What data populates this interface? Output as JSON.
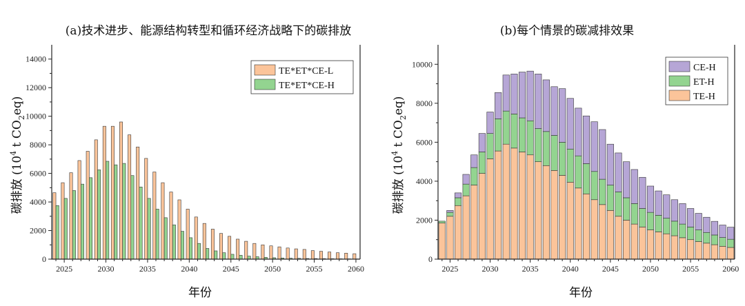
{
  "chart_data": [
    {
      "type": "bar",
      "title": "(a)技术进步、能源结构转型和循环经济战略下的碳排放",
      "xlabel": "年份",
      "ylabel": {
        "main": "碳排放 (10",
        "sup": "4",
        "mid": " t CO",
        "sub": "2",
        "end": "eq)"
      },
      "xlim": [
        2023.5,
        2060.5
      ],
      "ylim": [
        0,
        15000
      ],
      "x_ticks": [
        2025,
        2030,
        2035,
        2040,
        2045,
        2050,
        2055,
        2060
      ],
      "y_ticks": [
        0,
        2000,
        4000,
        6000,
        8000,
        10000,
        12000,
        14000
      ],
      "legend_position": "top-right",
      "categories": [
        2024,
        2025,
        2026,
        2027,
        2028,
        2029,
        2030,
        2031,
        2032,
        2033,
        2034,
        2035,
        2036,
        2037,
        2038,
        2039,
        2040,
        2041,
        2042,
        2043,
        2044,
        2045,
        2046,
        2047,
        2048,
        2049,
        2050,
        2051,
        2052,
        2053,
        2054,
        2055,
        2056,
        2057,
        2058,
        2059,
        2060
      ],
      "series": [
        {
          "name": "TE*ET*CE-L",
          "color": "#FBC49A",
          "values": [
            4650,
            5350,
            6050,
            6900,
            7550,
            8350,
            9300,
            9300,
            9600,
            8700,
            7850,
            7050,
            6100,
            5350,
            4700,
            4150,
            3500,
            2950,
            2500,
            2100,
            1800,
            1600,
            1400,
            1250,
            1100,
            1000,
            930,
            860,
            780,
            720,
            680,
            600,
            550,
            500,
            450,
            420,
            380
          ]
        },
        {
          "name": "TE*ET*CE-H",
          "color": "#93D490",
          "values": [
            3750,
            4250,
            4800,
            5250,
            5700,
            6250,
            6850,
            6600,
            6700,
            5850,
            5050,
            4250,
            3500,
            2900,
            2400,
            1950,
            1500,
            1100,
            750,
            580,
            450,
            340,
            270,
            210,
            170,
            130,
            100,
            80,
            65,
            55,
            45,
            40,
            35,
            30,
            25,
            20,
            15
          ]
        }
      ]
    },
    {
      "type": "bar",
      "stacked": true,
      "title": "(b)每个情景的碳减排效果",
      "xlabel": "年份",
      "ylabel": {
        "main": "碳排放 (10",
        "sup": "4",
        "mid": " t CO",
        "sub": "2",
        "end": "eq)"
      },
      "xlim": [
        2023.5,
        2060.5
      ],
      "ylim": [
        0,
        11000
      ],
      "x_ticks": [
        2025,
        2030,
        2035,
        2040,
        2045,
        2050,
        2055,
        2060
      ],
      "y_ticks": [
        0,
        2000,
        4000,
        6000,
        8000,
        10000
      ],
      "legend_position": "top-right",
      "legend_order": [
        "CE-H",
        "ET-H",
        "TE-H"
      ],
      "categories": [
        2024,
        2025,
        2026,
        2027,
        2028,
        2029,
        2030,
        2031,
        2032,
        2033,
        2034,
        2035,
        2036,
        2037,
        2038,
        2039,
        2040,
        2041,
        2042,
        2043,
        2044,
        2045,
        2046,
        2047,
        2048,
        2049,
        2050,
        2051,
        2052,
        2053,
        2054,
        2055,
        2056,
        2057,
        2058,
        2059,
        2060
      ],
      "series": [
        {
          "name": "TE-H",
          "color": "#FBC49A",
          "values": [
            1850,
            2200,
            2750,
            3250,
            3800,
            4400,
            5150,
            5550,
            5900,
            5700,
            5500,
            5350,
            5000,
            4800,
            4550,
            4300,
            3950,
            3650,
            3350,
            3050,
            2800,
            2500,
            2200,
            2000,
            1800,
            1650,
            1500,
            1400,
            1300,
            1200,
            1100,
            1000,
            900,
            820,
            740,
            660,
            600
          ]
        },
        {
          "name": "ET-H",
          "color": "#93D490",
          "values": [
            100,
            200,
            400,
            600,
            900,
            1100,
            1300,
            1650,
            1700,
            1750,
            1750,
            1750,
            1700,
            1750,
            1800,
            1700,
            1700,
            1650,
            1550,
            1450,
            1300,
            1300,
            1250,
            1150,
            1050,
            950,
            900,
            850,
            800,
            750,
            700,
            650,
            600,
            550,
            500,
            450,
            420
          ]
        },
        {
          "name": "CE-H",
          "color": "#B6A6D6",
          "values": [
            0,
            100,
            250,
            500,
            650,
            950,
            1100,
            1350,
            1850,
            2050,
            2350,
            2550,
            2800,
            2650,
            2500,
            2750,
            2600,
            2450,
            2450,
            2550,
            2550,
            2100,
            2000,
            1850,
            1750,
            1600,
            1350,
            1250,
            1200,
            1100,
            1050,
            950,
            850,
            780,
            700,
            640,
            620
          ]
        }
      ]
    }
  ]
}
